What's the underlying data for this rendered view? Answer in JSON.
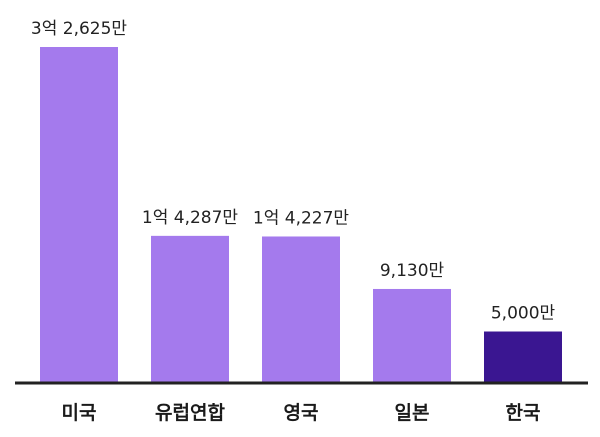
{
  "chart_data": {
    "type": "bar",
    "categories": [
      "미국",
      "유럽연합",
      "영국",
      "일본",
      "한국"
    ],
    "values": [
      326250000,
      142870000,
      142270000,
      91300000,
      50000000
    ],
    "data_labels": [
      "3억 2,625만",
      "1억 4,287만",
      "1억 4,227만",
      "9,130만",
      "5,000만"
    ],
    "title": "",
    "xlabel": "",
    "ylabel": "",
    "ylim": [
      0,
      326250000
    ],
    "grid": false,
    "legend": "none",
    "colors": {
      "default": "#a47aed",
      "highlight": "#3a1691",
      "axis": "#222222"
    },
    "highlight_index": 4
  }
}
